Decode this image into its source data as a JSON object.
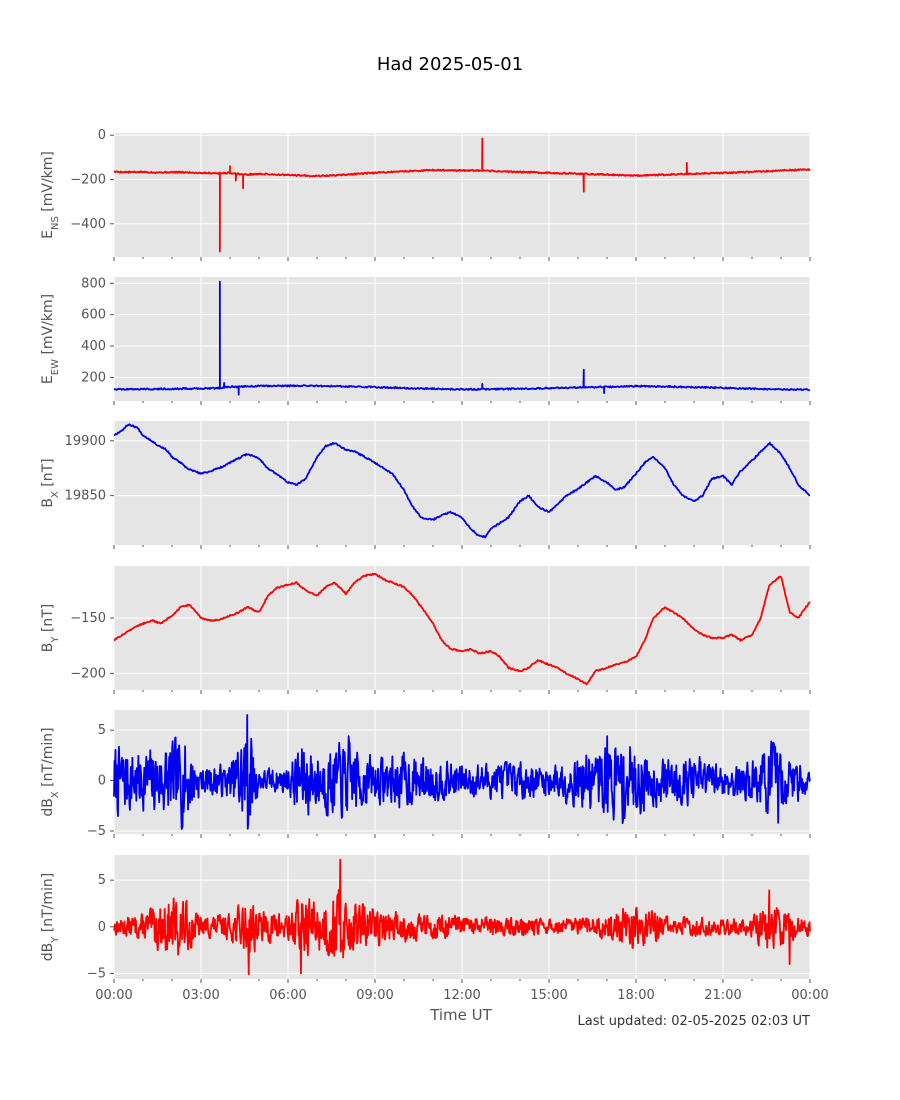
{
  "title": "Had 2025-05-01",
  "footer": "Last updated: 02-05-2025 02:03 UT",
  "x_label": "Time UT",
  "x_ticks": [
    "00:00",
    "03:00",
    "06:00",
    "09:00",
    "12:00",
    "15:00",
    "18:00",
    "21:00",
    "00:00"
  ],
  "colors": {
    "red": "#ff0000",
    "blue": "#0000ee",
    "panel_bg": "#e5e5e5",
    "grid": "#ffffff"
  },
  "chart_data": [
    {
      "type": "line",
      "id": "ens",
      "ylabel_main": "E",
      "ylabel_sub": "NS",
      "ylabel_unit": " [mV/km]",
      "color": "#ff0000",
      "ylim": [
        -550,
        10
      ],
      "yticks": [
        0,
        -200,
        -400
      ],
      "x": [
        0,
        0.5,
        1,
        1.5,
        2,
        2.5,
        3,
        3.5,
        3.7,
        3.8,
        4,
        4.3,
        4.5,
        5,
        5.5,
        6,
        6.5,
        7,
        7.5,
        8,
        8.5,
        9,
        9.5,
        10,
        10.5,
        11,
        11.5,
        12,
        12.5,
        12.75,
        13,
        13.5,
        14,
        14.5,
        15,
        15.5,
        16,
        16.5,
        17,
        17.5,
        18,
        18.5,
        19,
        19.5,
        19.8,
        20,
        20.5,
        21,
        21.5,
        22,
        22.5,
        23,
        23.5,
        24
      ],
      "y": [
        -165,
        -167,
        -166,
        -168,
        -167,
        -168,
        -170,
        -171,
        -172,
        -171,
        -170,
        -175,
        -178,
        -175,
        -177,
        -180,
        -182,
        -184,
        -182,
        -178,
        -174,
        -170,
        -166,
        -163,
        -160,
        -158,
        -158,
        -159,
        -160,
        -161,
        -162,
        -164,
        -166,
        -168,
        -170,
        -172,
        -174,
        -176,
        -178,
        -180,
        -182,
        -180,
        -178,
        -176,
        -175,
        -174,
        -172,
        -170,
        -168,
        -166,
        -163,
        -160,
        -157,
        -155
      ],
      "spikes": [
        {
          "x": 3.65,
          "y": -525
        },
        {
          "x": 4.0,
          "y": -140
        },
        {
          "x": 4.2,
          "y": -205
        },
        {
          "x": 4.45,
          "y": -240
        },
        {
          "x": 12.7,
          "y": -15
        },
        {
          "x": 16.2,
          "y": -255
        },
        {
          "x": 19.75,
          "y": -125
        }
      ]
    },
    {
      "type": "line",
      "id": "eew",
      "ylabel_main": "E",
      "ylabel_sub": "EW",
      "ylabel_unit": " [mV/km]",
      "color": "#0000ee",
      "ylim": [
        50,
        840
      ],
      "yticks": [
        200,
        400,
        600,
        800
      ],
      "x": [
        0,
        1,
        2,
        3,
        3.6,
        4,
        5,
        6,
        7,
        8,
        9,
        10,
        11,
        12,
        13,
        14,
        15,
        16,
        17,
        18,
        19,
        20,
        21,
        22,
        23,
        24
      ],
      "y": [
        125,
        126,
        128,
        130,
        132,
        140,
        145,
        147,
        146,
        143,
        138,
        132,
        128,
        124,
        125,
        128,
        132,
        136,
        140,
        145,
        142,
        138,
        133,
        128,
        124,
        122
      ],
      "spikes": [
        {
          "x": 3.65,
          "y": 810
        },
        {
          "x": 3.8,
          "y": 165
        },
        {
          "x": 4.3,
          "y": 90
        },
        {
          "x": 12.7,
          "y": 160
        },
        {
          "x": 16.2,
          "y": 250
        },
        {
          "x": 16.9,
          "y": 100
        }
      ]
    },
    {
      "type": "line",
      "id": "bx",
      "ylabel_main": "B",
      "ylabel_sub": "X",
      "ylabel_unit": " [nT]",
      "color": "#0000ee",
      "ylim": [
        19805,
        19918
      ],
      "yticks": [
        19850,
        19900
      ],
      "x": [
        0,
        0.3,
        0.5,
        0.8,
        1.0,
        1.3,
        1.5,
        1.8,
        2.0,
        2.3,
        2.5,
        3.0,
        3.3,
        3.7,
        4.0,
        4.3,
        4.6,
        5.0,
        5.3,
        5.7,
        6.0,
        6.3,
        6.6,
        7.0,
        7.3,
        7.6,
        8.0,
        8.3,
        8.6,
        9.0,
        9.3,
        9.6,
        10.0,
        10.3,
        10.6,
        11.0,
        11.3,
        11.6,
        12.0,
        12.3,
        12.5,
        12.8,
        13.0,
        13.3,
        13.6,
        14.0,
        14.3,
        14.6,
        15.0,
        15.3,
        15.6,
        16.0,
        16.3,
        16.6,
        17.0,
        17.3,
        17.6,
        18.0,
        18.3,
        18.6,
        19.0,
        19.3,
        19.6,
        20.0,
        20.3,
        20.6,
        21.0,
        21.3,
        21.6,
        22.0,
        22.3,
        22.6,
        23.0,
        23.3,
        23.6,
        24.0
      ],
      "y": [
        19905,
        19910,
        19915,
        19912,
        19905,
        19900,
        19896,
        19892,
        19885,
        19880,
        19875,
        19870,
        19872,
        19876,
        19880,
        19884,
        19888,
        19884,
        19875,
        19868,
        19862,
        19860,
        19865,
        19885,
        19895,
        19898,
        19892,
        19890,
        19886,
        19880,
        19875,
        19870,
        19855,
        19840,
        19830,
        19828,
        19832,
        19835,
        19830,
        19820,
        19815,
        19812,
        19820,
        19825,
        19830,
        19845,
        19850,
        19840,
        19835,
        19842,
        19850,
        19856,
        19862,
        19868,
        19862,
        19855,
        19858,
        19870,
        19880,
        19885,
        19875,
        19860,
        19850,
        19845,
        19850,
        19865,
        19868,
        19860,
        19872,
        19882,
        19890,
        19898,
        19888,
        19875,
        19860,
        19850
      ]
    },
    {
      "type": "line",
      "id": "by",
      "ylabel_main": "B",
      "ylabel_sub": "Y",
      "ylabel_unit": " [nT]",
      "color": "#ff0000",
      "ylim": [
        -215,
        -103
      ],
      "yticks": [
        -150,
        -200
      ],
      "x": [
        0,
        0.3,
        0.6,
        1.0,
        1.3,
        1.6,
        2.0,
        2.3,
        2.6,
        3.0,
        3.3,
        3.6,
        4.0,
        4.3,
        4.6,
        5.0,
        5.3,
        5.6,
        6.0,
        6.3,
        6.6,
        7.0,
        7.3,
        7.6,
        8.0,
        8.3,
        8.6,
        9.0,
        9.3,
        9.6,
        10.0,
        10.3,
        10.6,
        11.0,
        11.3,
        11.6,
        12.0,
        12.3,
        12.6,
        13.0,
        13.3,
        13.6,
        14.0,
        14.3,
        14.6,
        15.0,
        15.3,
        15.6,
        16.0,
        16.3,
        16.6,
        17.0,
        17.3,
        17.6,
        18.0,
        18.3,
        18.6,
        19.0,
        19.3,
        19.6,
        20.0,
        20.3,
        20.6,
        21.0,
        21.3,
        21.6,
        22.0,
        22.3,
        22.6,
        23.0,
        23.3,
        23.6,
        24.0
      ],
      "y": [
        -170,
        -165,
        -160,
        -155,
        -152,
        -155,
        -148,
        -140,
        -138,
        -150,
        -152,
        -152,
        -148,
        -145,
        -140,
        -145,
        -130,
        -123,
        -120,
        -118,
        -125,
        -130,
        -122,
        -118,
        -128,
        -118,
        -112,
        -110,
        -115,
        -118,
        -122,
        -130,
        -140,
        -155,
        -170,
        -178,
        -180,
        -178,
        -182,
        -180,
        -185,
        -195,
        -198,
        -195,
        -188,
        -192,
        -195,
        -200,
        -205,
        -210,
        -198,
        -195,
        -192,
        -190,
        -185,
        -170,
        -150,
        -140,
        -145,
        -150,
        -160,
        -165,
        -168,
        -168,
        -165,
        -170,
        -165,
        -150,
        -120,
        -112,
        -145,
        -150,
        -135
      ]
    },
    {
      "type": "line",
      "id": "dbx",
      "ylabel_main": "dB",
      "ylabel_sub": "X",
      "ylabel_unit": " [nT/min]",
      "color": "#0000ee",
      "ylim": [
        -5.3,
        7.0
      ],
      "yticks": [
        5,
        0,
        -5
      ],
      "noise": true,
      "seed": 7,
      "base_amp": 1.0,
      "envelope": [
        [
          0,
          3.2
        ],
        [
          1,
          2.6
        ],
        [
          2,
          3.5
        ],
        [
          2.4,
          4.2
        ],
        [
          3,
          1.2
        ],
        [
          4,
          1.5
        ],
        [
          4.6,
          5.5
        ],
        [
          5,
          1.0
        ],
        [
          6,
          1.2
        ],
        [
          6.4,
          3.3
        ],
        [
          7,
          2.8
        ],
        [
          8,
          3.4
        ],
        [
          8.5,
          2.8
        ],
        [
          9,
          2.0
        ],
        [
          10,
          2.5
        ],
        [
          11,
          1.8
        ],
        [
          12,
          1.5
        ],
        [
          13,
          1.6
        ],
        [
          14,
          1.6
        ],
        [
          15,
          1.4
        ],
        [
          16,
          2.4
        ],
        [
          17,
          3.0
        ],
        [
          17.6,
          4.0
        ],
        [
          18,
          3.0
        ],
        [
          19,
          2.0
        ],
        [
          20,
          2.2
        ],
        [
          21,
          1.5
        ],
        [
          22,
          1.8
        ],
        [
          22.6,
          3.6
        ],
        [
          23,
          2.6
        ],
        [
          23.5,
          2.0
        ],
        [
          24,
          1.0
        ]
      ],
      "spikes": [
        {
          "x": 4.6,
          "y": 6.5
        },
        {
          "x": 4.63,
          "y": -4.3
        },
        {
          "x": 2.33,
          "y": -4.8
        },
        {
          "x": 8.1,
          "y": 4.4
        },
        {
          "x": 17.0,
          "y": 4.4
        },
        {
          "x": 22.9,
          "y": -4.2
        }
      ]
    },
    {
      "type": "line",
      "id": "dby",
      "ylabel_main": "dB",
      "ylabel_sub": "Y",
      "ylabel_unit": " [nT/min]",
      "color": "#ff0000",
      "ylim": [
        -5.6,
        7.7
      ],
      "yticks": [
        5,
        0,
        -5
      ],
      "noise": true,
      "seed": 13,
      "base_amp": 0.6,
      "envelope": [
        [
          0,
          0.8
        ],
        [
          1,
          1.2
        ],
        [
          1.6,
          2.4
        ],
        [
          2.3,
          3.0
        ],
        [
          3,
          1.0
        ],
        [
          4,
          1.2
        ],
        [
          4.7,
          3.2
        ],
        [
          5,
          1.5
        ],
        [
          6,
          1.6
        ],
        [
          6.5,
          3.0
        ],
        [
          7,
          2.4
        ],
        [
          7.7,
          3.5
        ],
        [
          8.2,
          2.8
        ],
        [
          9,
          1.8
        ],
        [
          10,
          1.4
        ],
        [
          11,
          1.2
        ],
        [
          12,
          1.0
        ],
        [
          13,
          0.9
        ],
        [
          14,
          1.0
        ],
        [
          15,
          0.7
        ],
        [
          16,
          0.8
        ],
        [
          17,
          1.2
        ],
        [
          17.5,
          1.8
        ],
        [
          18,
          2.2
        ],
        [
          19,
          1.0
        ],
        [
          20,
          0.9
        ],
        [
          21,
          0.8
        ],
        [
          22,
          1.0
        ],
        [
          22.5,
          2.6
        ],
        [
          23,
          2.0
        ],
        [
          23.5,
          1.2
        ],
        [
          24,
          0.8
        ]
      ],
      "spikes": [
        {
          "x": 7.8,
          "y": 7.2
        },
        {
          "x": 4.65,
          "y": -5.1
        },
        {
          "x": 6.45,
          "y": -5.0
        },
        {
          "x": 23.3,
          "y": -4.0
        },
        {
          "x": 22.6,
          "y": 3.9
        }
      ]
    }
  ]
}
